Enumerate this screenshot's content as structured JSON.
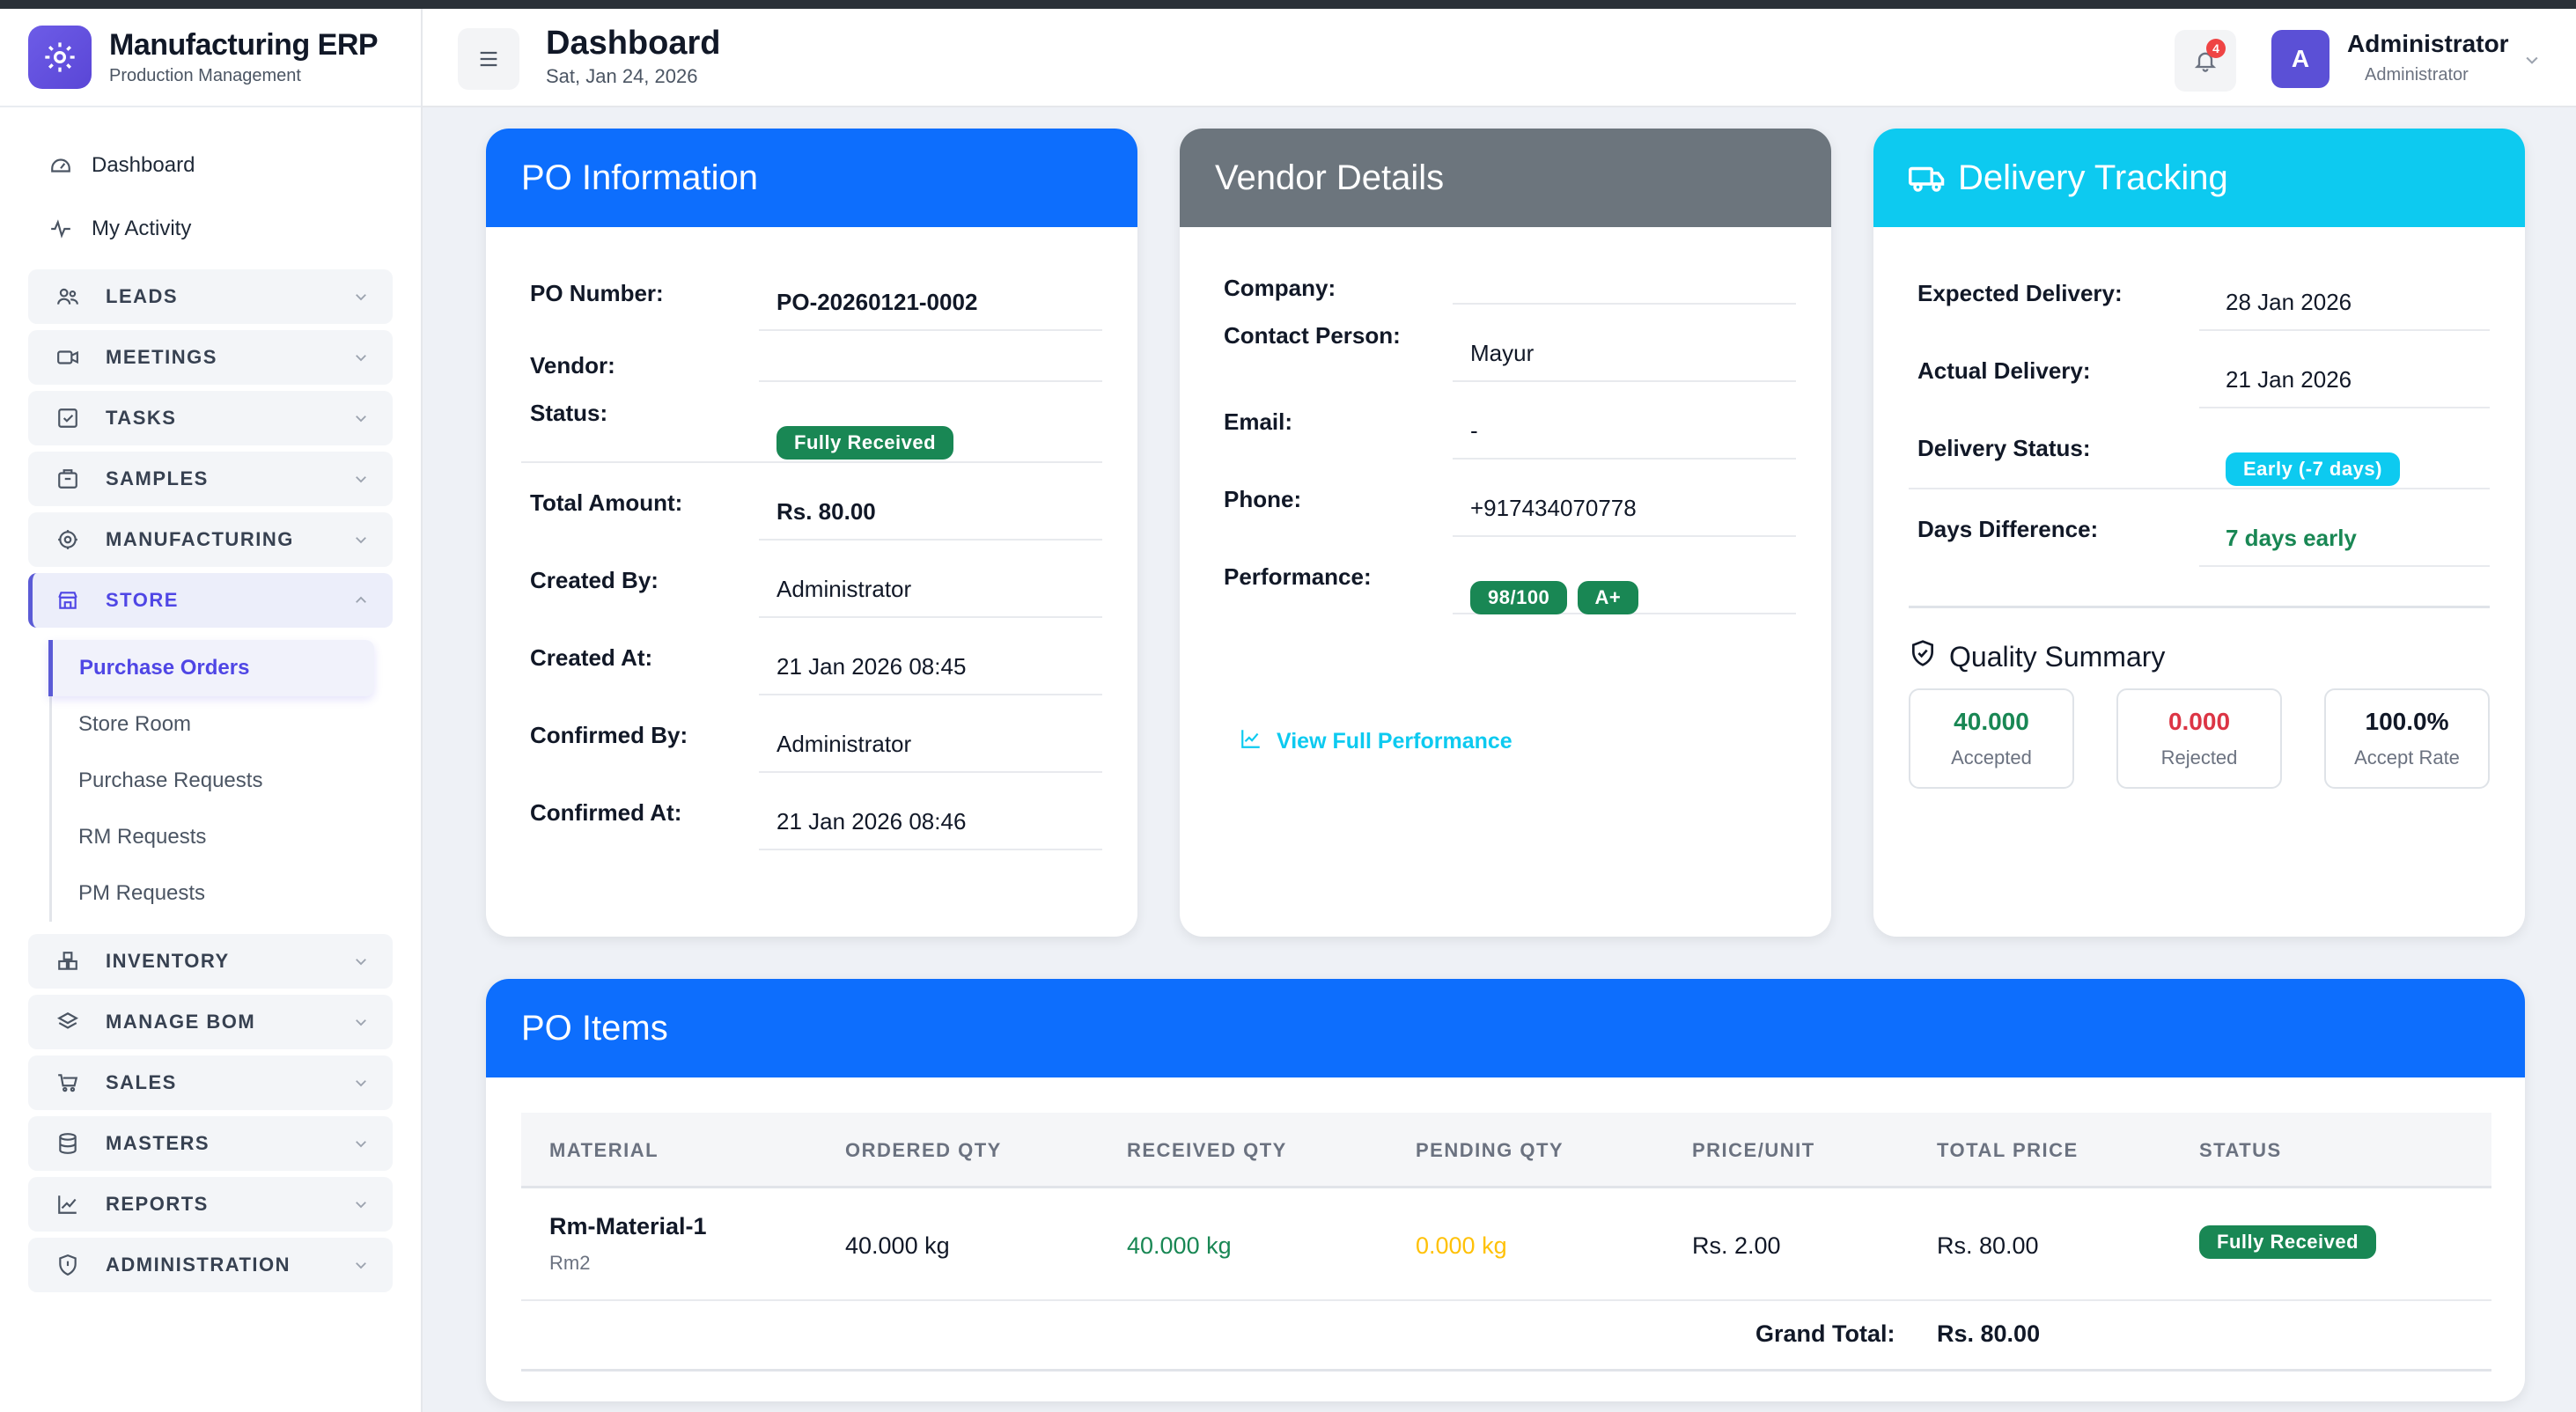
{
  "brand": {
    "title": "Manufacturing ERP",
    "subtitle": "Production Management"
  },
  "header": {
    "title": "Dashboard",
    "date": "Sat, Jan 24, 2026",
    "notifications": "4",
    "user_initial": "A",
    "user_name": "Administrator",
    "user_role": "Administrator"
  },
  "sidebar": {
    "top": [
      {
        "label": "Dashboard",
        "icon": "dashboard-icon"
      },
      {
        "label": "My Activity",
        "icon": "activity-icon"
      }
    ],
    "groups": [
      {
        "label": "LEADS",
        "icon": "users-icon"
      },
      {
        "label": "MEETINGS",
        "icon": "video-icon"
      },
      {
        "label": "TASKS",
        "icon": "check-square-icon"
      },
      {
        "label": "SAMPLES",
        "icon": "box-icon"
      },
      {
        "label": "MANUFACTURING",
        "icon": "gear-icon"
      },
      {
        "label": "STORE",
        "icon": "store-icon"
      }
    ],
    "store_items": [
      "Purchase Orders",
      "Store Room",
      "Purchase Requests",
      "RM Requests",
      "PM Requests"
    ],
    "groups_after": [
      {
        "label": "INVENTORY",
        "icon": "boxes-icon"
      },
      {
        "label": "MANAGE BOM",
        "icon": "layers-icon"
      },
      {
        "label": "SALES",
        "icon": "cart-icon"
      },
      {
        "label": "MASTERS",
        "icon": "database-icon"
      },
      {
        "label": "REPORTS",
        "icon": "chart-icon"
      },
      {
        "label": "ADMINISTRATION",
        "icon": "shield-icon"
      }
    ]
  },
  "po_info": {
    "title": "PO Information",
    "rows": [
      {
        "label": "PO Number:",
        "value": "PO-20260121-0002"
      },
      {
        "label": "Vendor:",
        "value": ""
      },
      {
        "label": "Status:",
        "value": "Fully Received"
      },
      {
        "label": "Total Amount:",
        "value": "Rs. 80.00"
      },
      {
        "label": "Created By:",
        "value": "Administrator"
      },
      {
        "label": "Created At:",
        "value": "21 Jan 2026 08:45"
      },
      {
        "label": "Confirmed By:",
        "value": "Administrator"
      },
      {
        "label": "Confirmed At:",
        "value": "21 Jan 2026 08:46"
      }
    ]
  },
  "vendor": {
    "title": "Vendor Details",
    "rows": [
      {
        "label": "Company:",
        "value": ""
      },
      {
        "label": "Contact Person:",
        "value": "Mayur"
      },
      {
        "label": "Email:",
        "value": "-"
      },
      {
        "label": "Phone:",
        "value": "+917434070778"
      },
      {
        "label": "Performance:",
        "value": ""
      }
    ],
    "performance_score": "98/100",
    "performance_grade": "A+",
    "link": "View Full Performance"
  },
  "delivery": {
    "title": "Delivery Tracking",
    "rows": [
      {
        "label": "Expected Delivery:",
        "value": "28 Jan 2026"
      },
      {
        "label": "Actual Delivery:",
        "value": "21 Jan 2026"
      },
      {
        "label": "Delivery Status:",
        "value": "Early (-7 days)"
      },
      {
        "label": "Days Difference:",
        "value": "7 days early"
      }
    ],
    "quality_title": "Quality Summary",
    "quality": [
      {
        "value": "40.000",
        "label": "Accepted",
        "color": "#198754"
      },
      {
        "value": "0.000",
        "label": "Rejected",
        "color": "#dc3545"
      },
      {
        "value": "100.0%",
        "label": "Accept Rate",
        "color": "#111827"
      }
    ]
  },
  "items": {
    "title": "PO Items",
    "columns": [
      "MATERIAL",
      "ORDERED QTY",
      "RECEIVED QTY",
      "PENDING QTY",
      "PRICE/UNIT",
      "TOTAL PRICE",
      "STATUS"
    ],
    "rows": [
      {
        "material": "Rm-Material-1",
        "code": "Rm2",
        "ordered": "40.000 kg",
        "received": "40.000 kg",
        "pending": "0.000 kg",
        "price": "Rs. 2.00",
        "total": "Rs. 80.00",
        "status": "Fully Received"
      }
    ],
    "grand_total_label": "Grand Total:",
    "grand_total": "Rs. 80.00"
  },
  "colors": {
    "primary": "#0d6efd",
    "secondary": "#6c757d",
    "info": "#0dcaf0",
    "success": "#198754",
    "warning": "#ffc107",
    "danger": "#dc3545",
    "accent": "#5b50d6"
  }
}
